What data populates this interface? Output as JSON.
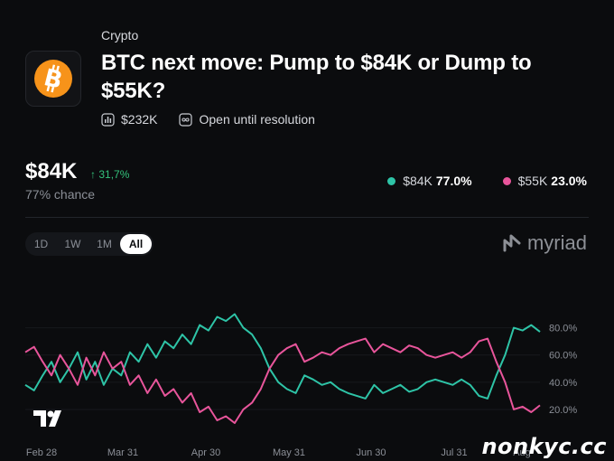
{
  "category": "Crypto",
  "title": "BTC next move: Pump to $84K or Dump to $55K?",
  "icons": {
    "logo": "bitcoin-icon",
    "volume": "bar-chart-icon",
    "status": "infinity-icon",
    "brand": "myriad-logo-icon"
  },
  "meta": {
    "volume": "$232K",
    "status": "Open until resolution"
  },
  "headline": {
    "price": "$84K",
    "change": "31,7%",
    "chance": "77% chance"
  },
  "legend": [
    {
      "label": "$84K",
      "value": "77.0%",
      "color": "#2ec4a7"
    },
    {
      "label": "$55K",
      "value": "23.0%",
      "color": "#e8559b"
    }
  ],
  "ranges": [
    "1D",
    "1W",
    "1M",
    "All"
  ],
  "active_range": "All",
  "brand": "myriad",
  "watermark": "nonkyc.cc",
  "chart_data": {
    "type": "line",
    "x_ticks": [
      "Feb 28",
      "Mar 31",
      "Apr 30",
      "May 31",
      "Jun 30",
      "Jul 31",
      "Aug"
    ],
    "y_ticks": [
      "80.0%",
      "60.0%",
      "40.0%",
      "20.0%"
    ],
    "ylim": [
      10,
      95
    ],
    "series": [
      {
        "name": "$84K",
        "color": "#2ec4a7",
        "values": [
          38,
          34,
          45,
          55,
          40,
          50,
          62,
          42,
          55,
          38,
          50,
          45,
          62,
          55,
          68,
          58,
          70,
          65,
          75,
          68,
          82,
          78,
          88,
          85,
          90,
          80,
          75,
          65,
          50,
          40,
          35,
          32,
          45,
          42,
          38,
          40,
          35,
          32,
          30,
          28,
          38,
          32,
          35,
          38,
          33,
          35,
          40,
          42,
          40,
          38,
          42,
          38,
          30,
          28,
          45,
          60,
          80,
          78,
          82,
          77
        ]
      },
      {
        "name": "$55K",
        "color": "#e8559b",
        "values": [
          62,
          66,
          55,
          45,
          60,
          50,
          38,
          58,
          45,
          62,
          50,
          55,
          38,
          45,
          32,
          42,
          30,
          35,
          25,
          32,
          18,
          22,
          12,
          15,
          10,
          20,
          25,
          35,
          50,
          60,
          65,
          68,
          55,
          58,
          62,
          60,
          65,
          68,
          70,
          72,
          62,
          68,
          65,
          62,
          67,
          65,
          60,
          58,
          60,
          62,
          58,
          62,
          70,
          72,
          55,
          40,
          20,
          22,
          18,
          23
        ]
      }
    ]
  }
}
